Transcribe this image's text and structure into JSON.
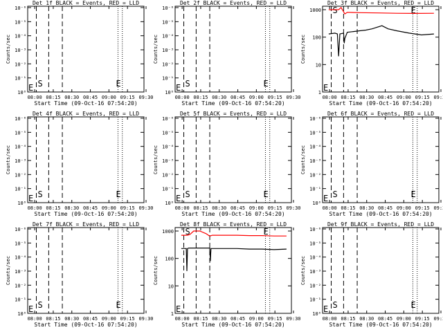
{
  "shared": {
    "xlabel": "Start Time (09-Oct-16 07:54:20)",
    "ylabel": "Counts/sec",
    "x_ticks": [
      "08:00",
      "08:15",
      "08:30",
      "08:45",
      "09:00",
      "09:15",
      "09:30"
    ],
    "x_range_min": [
      0,
      94
    ],
    "y_ticks_exp": [
      "10⁰",
      "10⁻¹",
      "10⁻²",
      "10⁻³",
      "10⁻⁴",
      "10⁻⁵",
      "10⁻⁶"
    ],
    "y_ticks_lin": [
      "1",
      "10",
      "100",
      "1000"
    ],
    "marker_S": "S",
    "marker_E": "E",
    "colors": {
      "events": "#000000",
      "lld": "#ff0000"
    }
  },
  "chart_data": [
    {
      "type": "line",
      "title": "Det 1f BLACK = Events, RED = LLD",
      "yscale": "exp",
      "series": []
    },
    {
      "type": "line",
      "title": "Det 2f BLACK = Events, RED = LLD",
      "yscale": "exp",
      "series": []
    },
    {
      "type": "line",
      "title": "Det 3f BLACK = Events, RED = LLD",
      "yscale": "log",
      "ylim": [
        1,
        1000
      ],
      "series": [
        {
          "color": "#000000",
          "x": [
            5,
            10,
            12,
            13,
            14,
            17,
            17.5,
            18,
            20,
            25,
            30,
            35,
            40,
            48,
            53,
            60,
            70,
            80,
            90
          ],
          "y": [
            130,
            140,
            130,
            20,
            130,
            140,
            60,
            90,
            150,
            160,
            170,
            180,
            200,
            260,
            200,
            170,
            140,
            120,
            130
          ]
        },
        {
          "color": "#ff0000",
          "x": [
            5,
            10,
            13,
            15,
            18,
            20,
            30,
            45,
            60,
            75,
            90
          ],
          "y": [
            1000,
            1000,
            1000,
            1200,
            700,
            800,
            780,
            760,
            740,
            730,
            740
          ]
        }
      ]
    },
    {
      "type": "line",
      "title": "Det 4f BLACK = Events, RED = LLD",
      "yscale": "exp",
      "series": []
    },
    {
      "type": "line",
      "title": "Det 5f BLACK = Events, RED = LLD",
      "yscale": "exp",
      "series": []
    },
    {
      "type": "line",
      "title": "Det 6f BLACK = Events, RED = LLD",
      "yscale": "exp",
      "series": []
    },
    {
      "type": "line",
      "title": "Det 7f BLACK = Events, RED = LLD",
      "yscale": "exp",
      "series": []
    },
    {
      "type": "line",
      "title": "Det 8f BLACK = Events, RED = LLD",
      "yscale": "log",
      "ylim": [
        1,
        1000
      ],
      "series": [
        {
          "color": "#000000",
          "x": [
            5,
            9,
            9.5,
            10,
            11,
            12,
            20,
            28,
            28.5,
            29,
            30,
            40,
            50,
            60,
            70,
            80,
            90
          ],
          "y": [
            230,
            230,
            35,
            230,
            240,
            240,
            240,
            240,
            80,
            230,
            230,
            230,
            230,
            220,
            220,
            210,
            220
          ]
        },
        {
          "color": "#ff0000",
          "x": [
            5,
            10,
            12,
            15,
            20,
            25,
            28,
            30,
            40,
            50,
            60,
            70,
            80,
            90
          ],
          "y": [
            700,
            700,
            750,
            1000,
            1000,
            800,
            650,
            700,
            700,
            700,
            680,
            680,
            660,
            660
          ]
        }
      ]
    },
    {
      "type": "line",
      "title": "Det 9f BLACK = Events, RED = LLD",
      "yscale": "exp",
      "series": []
    }
  ]
}
